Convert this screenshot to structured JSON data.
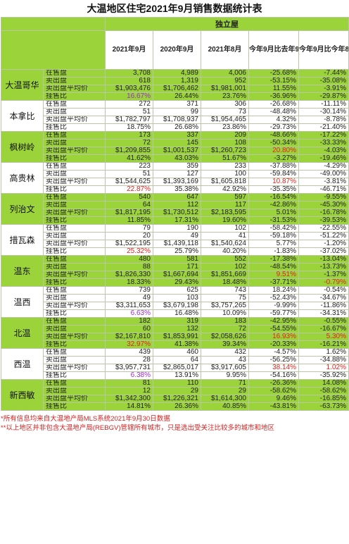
{
  "title": "大温地区住宅2021年9月销售数据统计表",
  "section": "独立屋",
  "columns": [
    "2021年9月",
    "2020年9月",
    "2021年8月",
    "今年9月比去年9月增加%",
    "今年9月比今年8月增加%"
  ],
  "metrics": [
    "在售盘",
    "卖出盘",
    "卖出盘平均价",
    "挂售比"
  ],
  "regions": [
    {
      "name": "大温哥华",
      "theme": "green",
      "rows": [
        [
          "3,708",
          "4,989",
          "4,006",
          "-25.68%",
          "-7.44%"
        ],
        [
          "618",
          "1,319",
          "952",
          "-53.15%",
          "-35.08%"
        ],
        [
          "$1,903,476",
          "$1,706,462",
          "$1,981,001",
          "11.55%",
          "-3.91%"
        ],
        [
          "16.67%",
          "26.44%",
          "23.76%",
          "-36.96%",
          "-29.87%"
        ]
      ],
      "colors": {
        "3-0": "purple"
      }
    },
    {
      "name": "本拿比",
      "theme": "white",
      "rows": [
        [
          "272",
          "371",
          "306",
          "-26.68%",
          "-11.11%"
        ],
        [
          "51",
          "99",
          "73",
          "-48.48%",
          "-30.14%"
        ],
        [
          "$1,782,797",
          "$1,708,937",
          "$1,954,465",
          "4.32%",
          "-8.78%"
        ],
        [
          "18.75%",
          "26.68%",
          "23.86%",
          "-29.73%",
          "-21.40%"
        ]
      ],
      "colors": {}
    },
    {
      "name": "枫树岭",
      "theme": "green",
      "rows": [
        [
          "173",
          "337",
          "209",
          "-48.66%",
          "-17.22%"
        ],
        [
          "72",
          "145",
          "108",
          "-50.34%",
          "-33.33%"
        ],
        [
          "$1,209,855",
          "$1,001,537",
          "$1,260,723",
          "20.80%",
          "-4.03%"
        ],
        [
          "41.62%",
          "43.03%",
          "51.67%",
          "-3.27%",
          "-19.46%"
        ]
      ],
      "colors": {
        "2-3": "red"
      }
    },
    {
      "name": "高贵林",
      "theme": "white",
      "rows": [
        [
          "223",
          "359",
          "233",
          "-37.88%",
          "-4.29%"
        ],
        [
          "51",
          "127",
          "100",
          "-59.84%",
          "-49.00%"
        ],
        [
          "$1,544,625",
          "$1,393,169",
          "$1,605,818",
          "10.87%",
          "-3.81%"
        ],
        [
          "22.87%",
          "35.38%",
          "42.92%",
          "-35.35%",
          "-46.71%"
        ]
      ],
      "colors": {
        "2-3": "red",
        "3-0": "red"
      }
    },
    {
      "name": "列治文",
      "theme": "green",
      "rows": [
        [
          "540",
          "647",
          "597",
          "-16.54%",
          "-9.55%"
        ],
        [
          "64",
          "112",
          "117",
          "-42.86%",
          "-45.30%"
        ],
        [
          "$1,817,195",
          "$1,730,512",
          "$2,183,595",
          "5.01%",
          "-16.78%"
        ],
        [
          "11.85%",
          "17.31%",
          "19.60%",
          "-31.53%",
          "-39.53%"
        ]
      ],
      "colors": {}
    },
    {
      "name": "措瓦森",
      "theme": "white",
      "rows": [
        [
          "79",
          "190",
          "102",
          "-58.42%",
          "-22.55%"
        ],
        [
          "20",
          "49",
          "41",
          "-59.18%",
          "-51.22%"
        ],
        [
          "$1,522,195",
          "$1,439,118",
          "$1,540,624",
          "5.77%",
          "-1.20%"
        ],
        [
          "25.32%",
          "25.79%",
          "40.20%",
          "-1.83%",
          "-37.02%"
        ]
      ],
      "colors": {
        "3-0": "red"
      }
    },
    {
      "name": "温东",
      "theme": "green",
      "rows": [
        [
          "480",
          "581",
          "552",
          "-17.38%",
          "-13.04%"
        ],
        [
          "88",
          "171",
          "102",
          "-48.54%",
          "-13.73%"
        ],
        [
          "$1,826,330",
          "$1,667,694",
          "$1,851,669",
          "9.51%",
          "-1.37%"
        ],
        [
          "18.33%",
          "29.43%",
          "18.48%",
          "-37.71%",
          "-0.79%"
        ]
      ],
      "colors": {
        "2-3": "red",
        "3-4": "red"
      }
    },
    {
      "name": "温西",
      "theme": "white",
      "rows": [
        [
          "739",
          "625",
          "743",
          "18.24%",
          "-0.54%"
        ],
        [
          "49",
          "103",
          "75",
          "-52.43%",
          "-34.67%"
        ],
        [
          "$3,311,653",
          "$3,679,198",
          "$3,757,265",
          "-9.99%",
          "-11.86%"
        ],
        [
          "6.63%",
          "16.48%",
          "10.09%",
          "-59.77%",
          "-34.31%"
        ]
      ],
      "colors": {
        "3-0": "purple"
      }
    },
    {
      "name": "北温",
      "theme": "green",
      "rows": [
        [
          "182",
          "319",
          "183",
          "-42.95%",
          "-0.55%"
        ],
        [
          "60",
          "132",
          "72",
          "-54.55%",
          "-16.67%"
        ],
        [
          "$2,167,810",
          "$1,853,991",
          "$2,058,626",
          "16.93%",
          "5.30%"
        ],
        [
          "32.97%",
          "41.38%",
          "39.34%",
          "-20.33%",
          "-16.21%"
        ]
      ],
      "colors": {
        "2-3": "red",
        "2-4": "red",
        "3-0": "red"
      }
    },
    {
      "name": "西温",
      "theme": "white",
      "rows": [
        [
          "439",
          "460",
          "432",
          "-4.57%",
          "1.62%"
        ],
        [
          "28",
          "64",
          "43",
          "-56.25%",
          "-34.88%"
        ],
        [
          "$3,957,731",
          "$2,865,017",
          "$3,917,605",
          "38.14%",
          "1.02%"
        ],
        [
          "6.38%",
          "13.91%",
          "9.95%",
          "-54.16%",
          "-35.92%"
        ]
      ],
      "colors": {
        "2-3": "red",
        "2-4": "red",
        "3-0": "purple"
      }
    },
    {
      "name": "新西敏",
      "theme": "green",
      "rows": [
        [
          "81",
          "110",
          "71",
          "-26.36%",
          "14.08%"
        ],
        [
          "12",
          "29",
          "29",
          "-58.62%",
          "-58.62%"
        ],
        [
          "$1,342,300",
          "$1,226,321",
          "$1,614,300",
          "9.46%",
          "-16.85%"
        ],
        [
          "14.81%",
          "26.36%",
          "40.85%",
          "-43.81%",
          "-63.73%"
        ]
      ],
      "colors": {}
    }
  ],
  "footer": [
    "*所有信息均来自大温地产局MLS系统2021年9月30日数据",
    "**以上地区并非包含大温地产局(REBGV)管辖所有城市，只是选出受关注比较多的城市和地区"
  ]
}
